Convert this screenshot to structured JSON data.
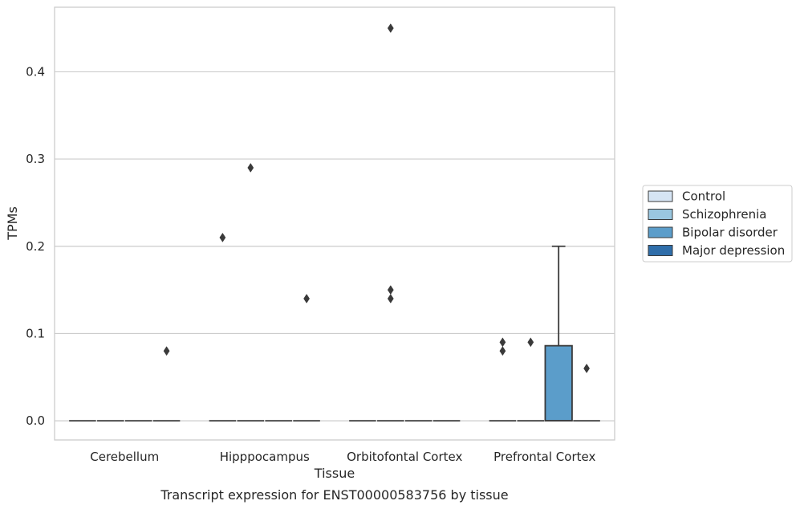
{
  "chart_data": {
    "type": "box",
    "title": "",
    "caption": "Transcript expression for ENST00000583756 by tissue",
    "xlabel": "Tissue",
    "ylabel": "TPMs",
    "ylim": [
      -0.022,
      0.474
    ],
    "yticks": [
      0.0,
      0.1,
      0.2,
      0.3,
      0.4
    ],
    "ytick_labels": [
      "0.0",
      "0.1",
      "0.2",
      "0.3",
      "0.4"
    ],
    "grid": "horizontal",
    "legend_position": "right",
    "categories": [
      "Cerebellum",
      "Hipppocampus",
      "Orbitofontal Cortex",
      "Prefrontal Cortex"
    ],
    "series": [
      {
        "name": "Control",
        "color": "#d6e5f4",
        "boxes": [
          {
            "q1": 0,
            "median": 0,
            "q3": 0,
            "whisker_low": 0,
            "whisker_high": 0,
            "outliers": []
          },
          {
            "q1": 0,
            "median": 0,
            "q3": 0,
            "whisker_low": 0,
            "whisker_high": 0,
            "outliers": [
              0.21
            ]
          },
          {
            "q1": 0,
            "median": 0,
            "q3": 0,
            "whisker_low": 0,
            "whisker_high": 0,
            "outliers": []
          },
          {
            "q1": 0,
            "median": 0,
            "q3": 0,
            "whisker_low": 0,
            "whisker_high": 0,
            "outliers": [
              0.09,
              0.08
            ]
          }
        ]
      },
      {
        "name": "Schizophrenia",
        "color": "#9ac7e0",
        "boxes": [
          {
            "q1": 0,
            "median": 0,
            "q3": 0,
            "whisker_low": 0,
            "whisker_high": 0,
            "outliers": []
          },
          {
            "q1": 0,
            "median": 0,
            "q3": 0,
            "whisker_low": 0,
            "whisker_high": 0,
            "outliers": [
              0.29
            ]
          },
          {
            "q1": 0,
            "median": 0,
            "q3": 0,
            "whisker_low": 0,
            "whisker_high": 0,
            "outliers": [
              0.45,
              0.15,
              0.14
            ]
          },
          {
            "q1": 0,
            "median": 0,
            "q3": 0,
            "whisker_low": 0,
            "whisker_high": 0,
            "outliers": [
              0.09
            ]
          }
        ]
      },
      {
        "name": "Bipolar disorder",
        "color": "#5b9dca",
        "boxes": [
          {
            "q1": 0,
            "median": 0,
            "q3": 0,
            "whisker_low": 0,
            "whisker_high": 0,
            "outliers": []
          },
          {
            "q1": 0,
            "median": 0,
            "q3": 0,
            "whisker_low": 0,
            "whisker_high": 0,
            "outliers": []
          },
          {
            "q1": 0,
            "median": 0,
            "q3": 0,
            "whisker_low": 0,
            "whisker_high": 0,
            "outliers": []
          },
          {
            "q1": 0,
            "median": 0,
            "q3": 0.086,
            "whisker_low": 0,
            "whisker_high": 0.2,
            "outliers": []
          }
        ]
      },
      {
        "name": "Major depression",
        "color": "#2f6eaa",
        "boxes": [
          {
            "q1": 0,
            "median": 0,
            "q3": 0,
            "whisker_low": 0,
            "whisker_high": 0,
            "outliers": [
              0.08
            ]
          },
          {
            "q1": 0,
            "median": 0,
            "q3": 0,
            "whisker_low": 0,
            "whisker_high": 0,
            "outliers": [
              0.14
            ]
          },
          {
            "q1": 0,
            "median": 0,
            "q3": 0,
            "whisker_low": 0,
            "whisker_high": 0,
            "outliers": []
          },
          {
            "q1": 0,
            "median": 0,
            "q3": 0,
            "whisker_low": 0,
            "whisker_high": 0,
            "outliers": [
              0.06
            ]
          }
        ]
      }
    ]
  }
}
